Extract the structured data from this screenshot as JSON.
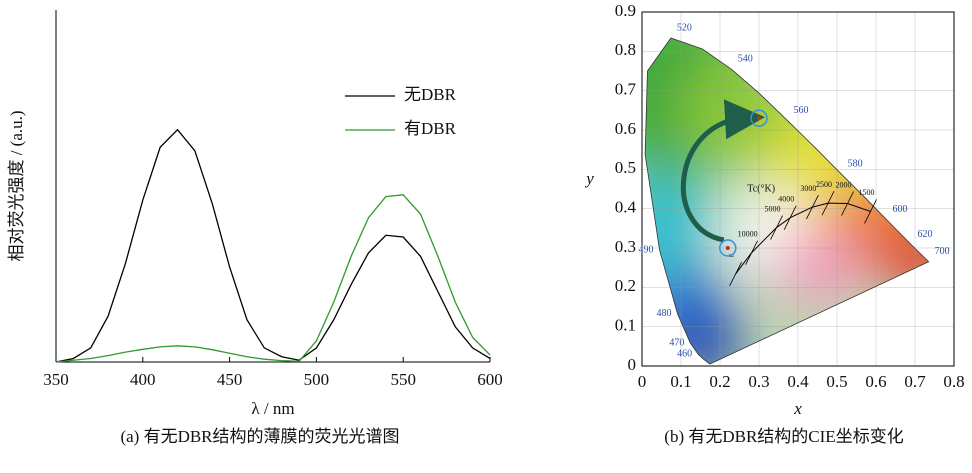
{
  "chart_data": [
    {
      "type": "line",
      "x": [
        350,
        360,
        370,
        380,
        390,
        400,
        410,
        420,
        430,
        440,
        450,
        460,
        470,
        480,
        490,
        500,
        510,
        520,
        530,
        540,
        550,
        560,
        570,
        580,
        590,
        600
      ],
      "series": [
        {
          "name": "无DBR",
          "color": "#000000",
          "values": [
            0,
            0.01,
            0.04,
            0.13,
            0.28,
            0.46,
            0.61,
            0.66,
            0.6,
            0.45,
            0.27,
            0.12,
            0.04,
            0.015,
            0.005,
            0.04,
            0.12,
            0.22,
            0.31,
            0.36,
            0.355,
            0.3,
            0.2,
            0.1,
            0.04,
            0.01
          ]
        },
        {
          "name": "有DBR",
          "color": "#2e9a2e",
          "values": [
            0,
            0.005,
            0.01,
            0.018,
            0.028,
            0.036,
            0.043,
            0.046,
            0.043,
            0.035,
            0.025,
            0.015,
            0.008,
            0.004,
            0.002,
            0.06,
            0.17,
            0.3,
            0.41,
            0.47,
            0.475,
            0.42,
            0.3,
            0.17,
            0.07,
            0.02
          ]
        }
      ],
      "xlim": [
        350,
        600
      ],
      "xticks": [
        350,
        400,
        450,
        500,
        550,
        600
      ],
      "ylim": [
        0,
        1
      ],
      "xlabel": "λ / nm",
      "ylabel": "相对荧光强度 / (a.u.)",
      "caption": "(a) 有无DBR结构的薄膜的荧光光谱图"
    },
    {
      "type": "scatter",
      "xlim": [
        0,
        0.8
      ],
      "ylim": [
        0,
        0.9
      ],
      "xticks": [
        0,
        0.1,
        0.2,
        0.3,
        0.4,
        0.5,
        0.6,
        0.7,
        0.8
      ],
      "yticks": [
        0,
        0.1,
        0.2,
        0.3,
        0.4,
        0.5,
        0.6,
        0.7,
        0.8,
        0.9
      ],
      "xlabel": "x",
      "ylabel": "y",
      "caption": "(b) 有无DBR结构的CIE坐标变化",
      "locus": {
        "x": [
          0.1741,
          0.157,
          0.144,
          0.124,
          0.091,
          0.045,
          0.008,
          0.014,
          0.074,
          0.155,
          0.23,
          0.302,
          0.373,
          0.444,
          0.512,
          0.575,
          0.627,
          0.666,
          0.691,
          0.735
        ],
        "y": [
          0.005,
          0.018,
          0.03,
          0.058,
          0.133,
          0.295,
          0.538,
          0.75,
          0.834,
          0.806,
          0.754,
          0.692,
          0.624,
          0.555,
          0.487,
          0.425,
          0.372,
          0.333,
          0.308,
          0.265
        ],
        "labels": [
          null,
          null,
          "460",
          "470",
          "480",
          "490",
          null,
          null,
          "520",
          null,
          "540",
          null,
          "560",
          null,
          "580",
          null,
          "600",
          null,
          "620",
          "700"
        ]
      },
      "planck": {
        "title": "Tc(°K)",
        "x": [
          0.24,
          0.281,
          0.345,
          0.38,
          0.437,
          0.477,
          0.527,
          0.586
        ],
        "y": [
          0.234,
          0.288,
          0.352,
          0.377,
          0.404,
          0.414,
          0.413,
          0.393
        ],
        "labels": [
          "∞",
          "10000",
          "5000",
          "4000",
          "3000",
          "2500",
          "2000",
          "1500"
        ]
      },
      "points": {
        "color": "#3a8fd0",
        "x": [
          0.22,
          0.3
        ],
        "y": [
          0.3,
          0.63
        ]
      }
    }
  ]
}
